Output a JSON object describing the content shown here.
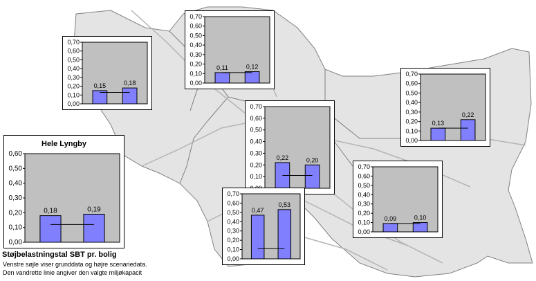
{
  "colors": {
    "plot_area": "#c0c0c0",
    "bar_fill": "#8080ff",
    "bar_stroke": "#000000",
    "municipality_fill": "#e4e4e4",
    "boundary_stroke": "#808080",
    "road_stroke": "#b4b4b4"
  },
  "legend": {
    "title": "Støjbelastningstal SBT pr. bolig",
    "line1": "Venstre søjle viser grunddata og højre scenariedata.",
    "line2": "Den vandrette linie angiver den valgte miljøkapacit"
  },
  "chart_data": [
    {
      "type": "bar",
      "id": "north-west",
      "title": "",
      "categories": [
        "",
        ""
      ],
      "values": [
        0.15,
        0.18
      ],
      "value_labels": [
        "0,15",
        "0,18"
      ],
      "threshold": 0.13,
      "ylim": [
        0,
        0.7
      ],
      "ytick_labels": [
        "0,70",
        "0,60",
        "0,50",
        "0,40",
        "0,30",
        "0,20",
        "0,10",
        "0,00"
      ]
    },
    {
      "type": "bar",
      "id": "north",
      "title": "",
      "categories": [
        "",
        ""
      ],
      "values": [
        0.11,
        0.12
      ],
      "value_labels": [
        "0,11",
        "0,12"
      ],
      "threshold": 0.11,
      "ylim": [
        0,
        0.7
      ],
      "ytick_labels": [
        "0,70",
        "0,60",
        "0,50",
        "0,40",
        "0,30",
        "0,20",
        "0,10",
        "0,00"
      ]
    },
    {
      "type": "bar",
      "id": "east",
      "title": "",
      "categories": [
        "",
        ""
      ],
      "values": [
        0.13,
        0.22
      ],
      "value_labels": [
        "0,13",
        "0,22"
      ],
      "threshold": 0.13,
      "ylim": [
        0,
        0.7
      ],
      "ytick_labels": [
        "0,70",
        "0,60",
        "0,50",
        "0,40",
        "0,30",
        "0,20",
        "0,10",
        "0,00"
      ]
    },
    {
      "type": "bar",
      "id": "center",
      "title": "",
      "categories": [
        "",
        ""
      ],
      "values": [
        0.22,
        0.2
      ],
      "value_labels": [
        "0,22",
        "0,20"
      ],
      "threshold": 0.11,
      "ylim": [
        0,
        0.7
      ],
      "ytick_labels": [
        "0,70",
        "0,60",
        "0,50",
        "0,40",
        "0,30",
        "0,20",
        "0,10",
        "0,00"
      ]
    },
    {
      "type": "bar",
      "id": "hele-lyngby",
      "title": "Hele Lyngby",
      "categories": [
        "",
        ""
      ],
      "values": [
        0.18,
        0.19
      ],
      "value_labels": [
        "0,18",
        "0,19"
      ],
      "threshold": 0.12,
      "ylim": [
        0,
        0.6
      ],
      "ytick_labels": [
        "0,60",
        "0,50",
        "0,40",
        "0,30",
        "0,20",
        "0,10",
        "0,00"
      ]
    },
    {
      "type": "bar",
      "id": "south-east",
      "title": "",
      "categories": [
        "",
        ""
      ],
      "values": [
        0.09,
        0.1
      ],
      "value_labels": [
        "0,09",
        "0,10"
      ],
      "threshold": 0.09,
      "ylim": [
        0,
        0.7
      ],
      "ytick_labels": [
        "0,70",
        "0,60",
        "0,50",
        "0,40",
        "0,30",
        "0,20",
        "0,10",
        "0,00"
      ]
    },
    {
      "type": "bar",
      "id": "south",
      "title": "",
      "categories": [
        "",
        ""
      ],
      "values": [
        0.47,
        0.53
      ],
      "value_labels": [
        "0,47",
        "0,53"
      ],
      "threshold": 0.11,
      "ylim": [
        0,
        0.7
      ],
      "ytick_labels": [
        "0,70",
        "0,60",
        "0,50",
        "0,40",
        "0,30",
        "0,20",
        "0,10",
        "0,00"
      ]
    }
  ]
}
